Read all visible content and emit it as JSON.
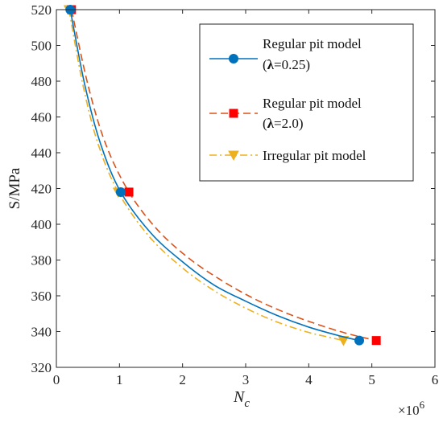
{
  "chart_data": {
    "type": "line",
    "xlabel": "N",
    "xlabel_subscript": "c",
    "ylabel": "S/MPa",
    "x_multiplier": "×10",
    "x_multiplier_exp": "6",
    "xlim": [
      0,
      6
    ],
    "ylim": [
      320,
      520
    ],
    "x_ticks": [
      0,
      1,
      2,
      3,
      4,
      5,
      6
    ],
    "y_ticks": [
      320,
      340,
      360,
      380,
      400,
      420,
      440,
      460,
      480,
      500,
      520
    ],
    "grid": false,
    "legend_position": "top-right",
    "series": [
      {
        "name_line1": "Regular pit model",
        "name_line2_prefix": "(",
        "name_line2_symbol": "λ",
        "name_line2_suffix": "=0.25)",
        "color": "#0072BD",
        "dash": "solid",
        "marker": "circle",
        "markers": [
          {
            "x": 0.22,
            "y": 520
          },
          {
            "x": 1.02,
            "y": 418
          },
          {
            "x": 4.8,
            "y": 335
          }
        ],
        "curve": [
          [
            0.22,
            520
          ],
          [
            0.45,
            478
          ],
          [
            0.7,
            445
          ],
          [
            1.02,
            418
          ],
          [
            1.5,
            395
          ],
          [
            2.0,
            379
          ],
          [
            2.5,
            366
          ],
          [
            3.0,
            357
          ],
          [
            3.5,
            349
          ],
          [
            4.0,
            342.5
          ],
          [
            4.5,
            337.5
          ],
          [
            4.8,
            335
          ]
        ]
      },
      {
        "name_line1": "Regular pit model",
        "name_line2_prefix": "(",
        "name_line2_symbol": "λ",
        "name_line2_suffix": "=2.0)",
        "color": "#D95319",
        "marker_color": "#FF0000",
        "dash": "dashed",
        "marker": "square",
        "markers": [
          {
            "x": 0.24,
            "y": 520
          },
          {
            "x": 1.15,
            "y": 418
          },
          {
            "x": 5.07,
            "y": 335
          }
        ],
        "curve": [
          [
            0.24,
            520
          ],
          [
            0.5,
            478
          ],
          [
            0.78,
            445
          ],
          [
            1.15,
            418
          ],
          [
            1.6,
            397
          ],
          [
            2.1,
            381
          ],
          [
            2.6,
            369
          ],
          [
            3.1,
            359
          ],
          [
            3.6,
            351
          ],
          [
            4.1,
            344.5
          ],
          [
            4.6,
            339
          ],
          [
            5.07,
            335
          ]
        ]
      },
      {
        "name_line1": "Irregular pit model",
        "color": "#EDB120",
        "dash": "dashdot",
        "marker": "triangle-down",
        "markers": [
          {
            "x": 0.2,
            "y": 520
          },
          {
            "x": 0.98,
            "y": 418
          },
          {
            "x": 4.55,
            "y": 335
          }
        ],
        "curve": [
          [
            0.2,
            520
          ],
          [
            0.42,
            478
          ],
          [
            0.66,
            445
          ],
          [
            0.98,
            418
          ],
          [
            1.45,
            394
          ],
          [
            1.95,
            377
          ],
          [
            2.45,
            364
          ],
          [
            2.95,
            354
          ],
          [
            3.45,
            346
          ],
          [
            3.95,
            340
          ],
          [
            4.3,
            337
          ],
          [
            4.55,
            335
          ]
        ]
      }
    ]
  }
}
